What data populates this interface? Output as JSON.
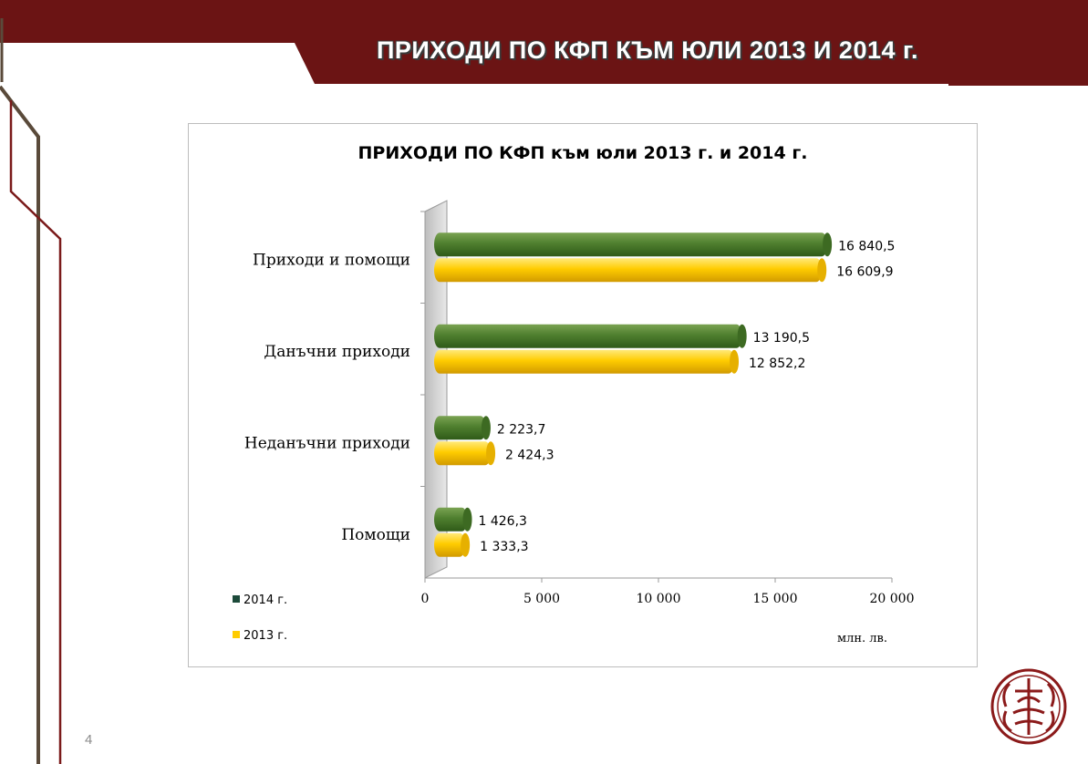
{
  "slide": {
    "title": "ПРИХОДИ ПО КФП КЪМ ЮЛИ 2013 И 2014 г.",
    "page_number": "4"
  },
  "colors": {
    "band": "#6b1414",
    "series_2014": "#4f7f2f",
    "series_2013": "#ffcc00"
  },
  "chart_data": {
    "type": "bar",
    "orientation": "horizontal",
    "title": "ПРИХОДИ ПО КФП към юли 2013 г. и 2014 г.",
    "categories": [
      "Приходи и помощи",
      "Данъчни приходи",
      "Неданъчни приходи",
      "Помощи"
    ],
    "series": [
      {
        "name": "2014 г.",
        "color": "#4f7f2f",
        "values": [
          16840.5,
          13190.5,
          2223.7,
          1426.3
        ],
        "labels": [
          "16 840,5",
          "13 190,5",
          "2 223,7",
          "1 426,3"
        ]
      },
      {
        "name": "2013 г.",
        "color": "#ffcc00",
        "values": [
          16609.9,
          12852.2,
          2424.3,
          1333.3
        ],
        "labels": [
          "16 609,9",
          "12 852,2",
          "2 424,3",
          "1 333,3"
        ]
      }
    ],
    "xlim": [
      0,
      20000
    ],
    "xticks": [
      "0",
      "5 000",
      "10 000",
      "15 000",
      "20 000"
    ],
    "xlabel": "млн. лв.",
    "legend_position": "bottom-left"
  }
}
